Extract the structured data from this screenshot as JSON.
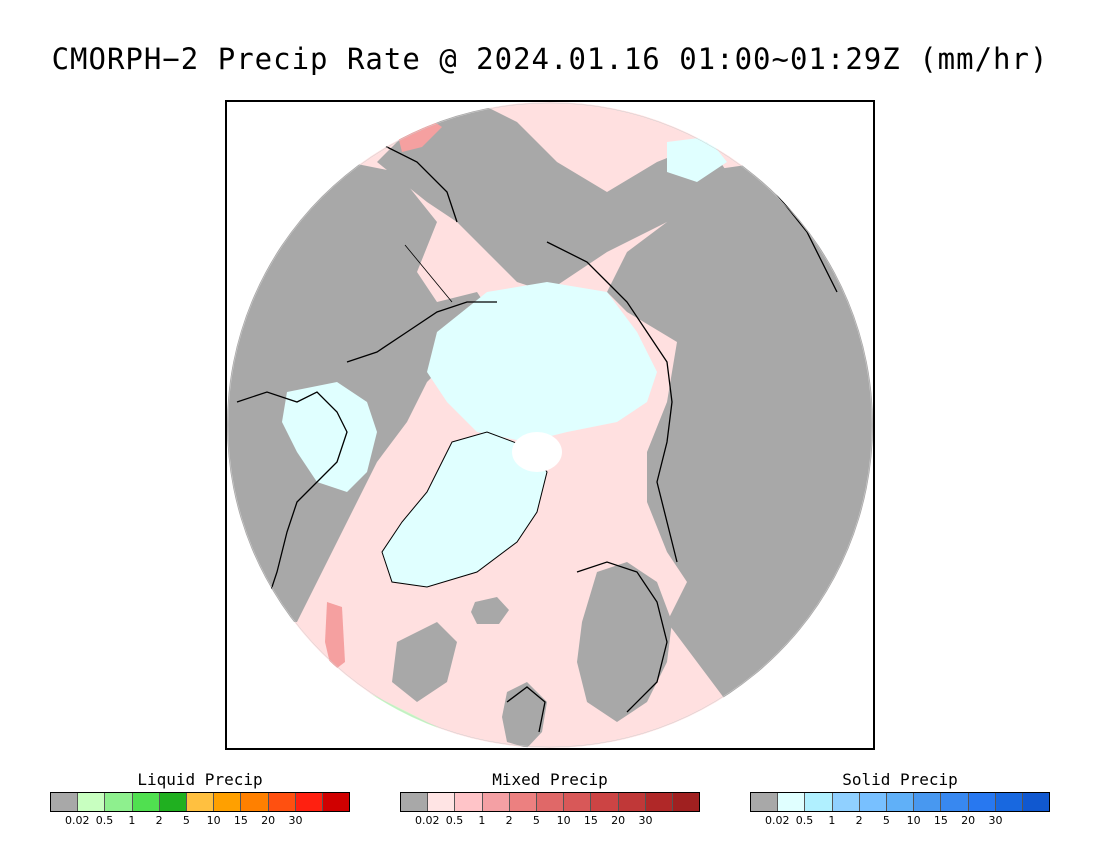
{
  "title": "CMORPH−2 Precip Rate @ 2024.01.16 01:00~01:29Z (mm/hr)",
  "map": {
    "projection": "polar-stereographic-north",
    "colors": {
      "no_precip": "#a8a8a8",
      "mixed_light": "#ffe0e0",
      "mixed_moderate": "#f5a0a0",
      "solid_light": "#e0ffff",
      "solid_moderate": "#c0f0ff",
      "liquid_light": "#c0ffc0",
      "pole_hole": "#ffffff",
      "coastline": "#000000"
    }
  },
  "legends": [
    {
      "title": "Liquid Precip",
      "colors": [
        "#a8a8a8",
        "#c8ffc0",
        "#8ef08e",
        "#50e050",
        "#20b020",
        "#ffc040",
        "#ffa000",
        "#ff8000",
        "#ff5010",
        "#ff2010",
        "#d00000"
      ],
      "ticks": [
        "0.02",
        "0.5",
        "1",
        "2",
        "5",
        "10",
        "15",
        "20",
        "30"
      ]
    },
    {
      "title": "Mixed Precip",
      "colors": [
        "#a8a8a8",
        "#ffe4e4",
        "#ffc4c8",
        "#f4a0a4",
        "#ec8080",
        "#e06868",
        "#d85858",
        "#cc4444",
        "#c03838",
        "#b02828",
        "#a02020"
      ],
      "ticks": [
        "0.02",
        "0.5",
        "1",
        "2",
        "5",
        "10",
        "15",
        "20",
        "30"
      ]
    },
    {
      "title": "Solid Precip",
      "colors": [
        "#a8a8a8",
        "#e0ffff",
        "#b0f0ff",
        "#90d0ff",
        "#78c0ff",
        "#60b0f8",
        "#4898f0",
        "#3888f0",
        "#2878f0",
        "#1868e0",
        "#1058d0"
      ],
      "ticks": [
        "0.02",
        "0.5",
        "1",
        "2",
        "5",
        "10",
        "15",
        "20",
        "30"
      ]
    }
  ]
}
